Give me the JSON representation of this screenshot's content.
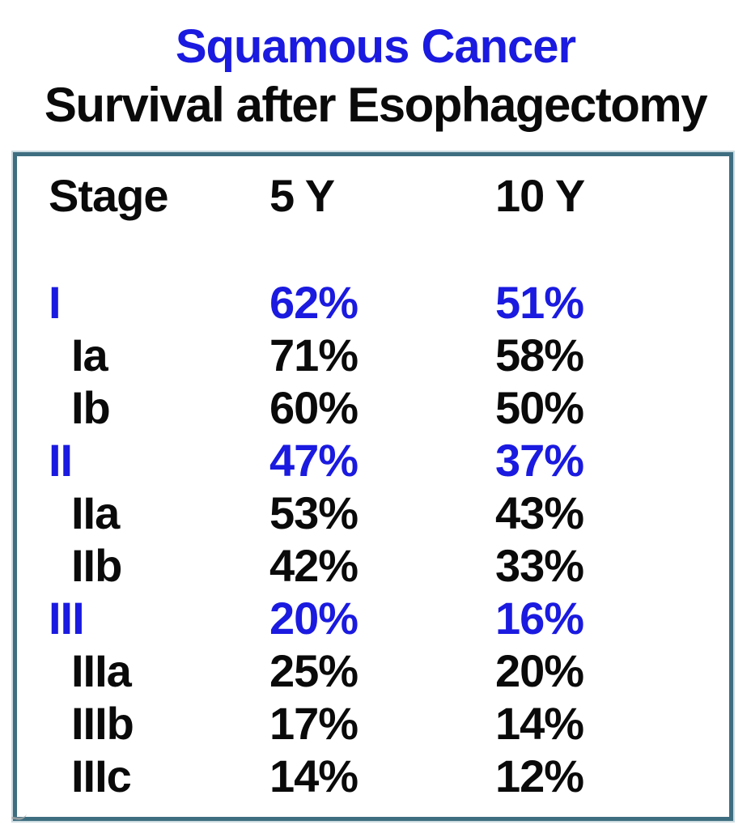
{
  "page": {
    "title_line1": "Squamous Cancer",
    "title_line2": "Survival after Esophagectomy"
  },
  "colors": {
    "title_blue": "#1a1ae0",
    "emphasis_row_blue": "#1a1ae0",
    "text_black": "#0a0a0a",
    "table_border_teal": "#3e6e80",
    "background": "#ffffff"
  },
  "chart_data": {
    "type": "table",
    "title": "Squamous Cancer",
    "subtitle": "Survival after Esophagectomy",
    "columns": [
      "Stage",
      "5 Y",
      "10 Y"
    ],
    "rows": [
      {
        "stage": "I",
        "y5": "62%",
        "y10": "51%",
        "emphasis": true
      },
      {
        "stage": "Ia",
        "y5": "71%",
        "y10": "58%",
        "emphasis": false
      },
      {
        "stage": "Ib",
        "y5": "60%",
        "y10": "50%",
        "emphasis": false
      },
      {
        "stage": "II",
        "y5": "47%",
        "y10": "37%",
        "emphasis": true
      },
      {
        "stage": "IIa",
        "y5": "53%",
        "y10": "43%",
        "emphasis": false
      },
      {
        "stage": "IIb",
        "y5": "42%",
        "y10": "33%",
        "emphasis": false
      },
      {
        "stage": "III",
        "y5": "20%",
        "y10": "16%",
        "emphasis": true
      },
      {
        "stage": "IIIa",
        "y5": "25%",
        "y10": "20%",
        "emphasis": false
      },
      {
        "stage": "IIIb",
        "y5": "17%",
        "y10": "14%",
        "emphasis": false
      },
      {
        "stage": "IIIc",
        "y5": "14%",
        "y10": "12%",
        "emphasis": false
      }
    ]
  }
}
